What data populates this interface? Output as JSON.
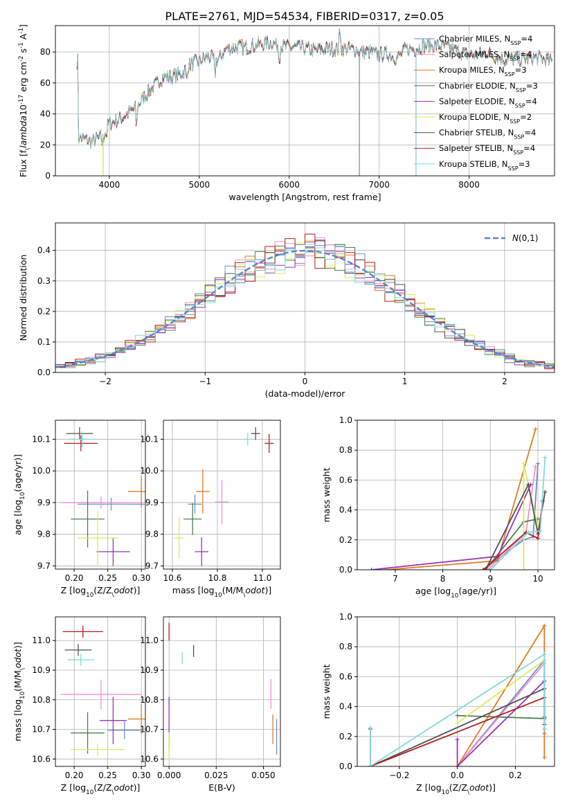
{
  "title": "PLATE=2761, MJD=54534, FIBERID=0317, z=0.05",
  "colors": [
    "#6c8ebf",
    "#f48ed2",
    "#e07b22",
    "#4a7f52",
    "#9b30b7",
    "#d7ec5c",
    "#505050",
    "#b31c1c",
    "#7fd8e0"
  ],
  "chart_data": [
    {
      "id": "spectrum",
      "type": "line",
      "xlabel": "wavelength [Angstrom, rest frame]",
      "ylabel": "Flux [f$_\\lambda$10$^{-17}$ erg cm$^{-2}$ s$^{-1}$ A$^{-1}$]",
      "xlim": [
        3400,
        8950
      ],
      "ylim": [
        0,
        97
      ],
      "xticks": [
        4000,
        5000,
        6000,
        7000,
        8000
      ],
      "yticks": [
        0,
        20,
        40,
        60,
        80
      ],
      "legend": "right",
      "series": [
        {
          "name": "Chabrier MILES, N$_{SSP}$=4"
        },
        {
          "name": "Salpeter MILES, N$_{SSP}$=4"
        },
        {
          "name": "Kroupa MILES, N$_{SSP}$=3"
        },
        {
          "name": "Chabrier ELODIE, N$_{SSP}$=3"
        },
        {
          "name": "Salpeter ELODIE, N$_{SSP}$=4"
        },
        {
          "name": "Kroupa ELODIE, N$_{SSP}$=2"
        },
        {
          "name": "Chabrier STELIB, N$_{SSP}$=4"
        },
        {
          "name": "Salpeter STELIB, N$_{SSP}$=4"
        },
        {
          "name": "Kroupa STELIB, N$_{SSP}$=3"
        }
      ],
      "continuum": [
        [
          3650,
          25
        ],
        [
          3800,
          22
        ],
        [
          3920,
          25
        ],
        [
          4000,
          34
        ],
        [
          4100,
          36
        ],
        [
          4200,
          40
        ],
        [
          4300,
          44
        ],
        [
          4400,
          52
        ],
        [
          4500,
          58
        ],
        [
          4600,
          64
        ],
        [
          4700,
          64
        ],
        [
          4800,
          66
        ],
        [
          4900,
          72
        ],
        [
          5000,
          74
        ],
        [
          5100,
          77
        ],
        [
          5200,
          74
        ],
        [
          5300,
          82
        ],
        [
          5400,
          83
        ],
        [
          5500,
          83
        ],
        [
          5600,
          84
        ],
        [
          5700,
          85
        ],
        [
          5800,
          86
        ],
        [
          5900,
          84
        ],
        [
          6000,
          83
        ],
        [
          6100,
          83
        ],
        [
          6200,
          82
        ],
        [
          6300,
          81
        ],
        [
          6400,
          82
        ],
        [
          6500,
          82
        ],
        [
          6600,
          82
        ],
        [
          6700,
          82
        ],
        [
          6800,
          80
        ],
        [
          6900,
          80
        ],
        [
          7000,
          78
        ],
        [
          7100,
          79
        ],
        [
          7200,
          76
        ],
        [
          7300,
          82
        ],
        [
          7400,
          82
        ],
        [
          7500,
          84
        ],
        [
          7600,
          84
        ],
        [
          7700,
          84
        ],
        [
          7800,
          82
        ],
        [
          7900,
          80
        ],
        [
          8000,
          78
        ],
        [
          8100,
          78
        ],
        [
          8200,
          80
        ],
        [
          8300,
          77
        ],
        [
          8400,
          75
        ],
        [
          8500,
          76
        ],
        [
          8600,
          75
        ],
        [
          8700,
          76
        ],
        [
          8800,
          76
        ],
        [
          8900,
          74
        ]
      ],
      "dips": [
        [
          3930,
          3
        ],
        [
          3970,
          3
        ],
        [
          4300,
          10
        ],
        [
          4860,
          6
        ],
        [
          5175,
          8
        ],
        [
          5890,
          6
        ],
        [
          6563,
          -8
        ]
      ],
      "dropouts": [
        [
          3930,
          0
        ],
        [
          3930,
          5
        ],
        [
          6780,
          3
        ],
        [
          7410,
          2
        ],
        [
          7410,
          7
        ],
        [
          7410,
          8
        ]
      ]
    },
    {
      "id": "residual-hist",
      "type": "histogram",
      "xlabel": "(data-model)/error",
      "ylabel": "Normed distribution",
      "xlim": [
        -2.5,
        2.5
      ],
      "ylim": [
        0,
        0.49
      ],
      "xticks": [
        -2,
        -1,
        0,
        1,
        2
      ],
      "yticks": [
        0.0,
        0.1,
        0.2,
        0.3,
        0.4
      ],
      "bin_width": 0.1,
      "legend": "top-right",
      "reference_curve": {
        "name": "$\\mathcal{N}(0,1)$",
        "color": "#4f86d8"
      }
    },
    {
      "id": "age-vs-z",
      "type": "scatter",
      "xlabel": "Z [log$_{10}$(Z/Z$_\\odot$)]",
      "ylabel": "age  [log$_{10}$(age/yr)]",
      "xlim": [
        0.172,
        0.306
      ],
      "ylim": [
        9.69,
        10.16
      ],
      "xticks": [
        0.2,
        0.25,
        0.3
      ],
      "yticks": [
        9.7,
        9.8,
        9.9,
        10.0,
        10.1
      ],
      "points": [
        {
          "x": 0.255,
          "xerr": 0.05,
          "y": 9.895,
          "yerr": 0.02,
          "c": 0
        },
        {
          "x": 0.24,
          "xerr": 0.06,
          "y": 9.9,
          "yerr": 0.02,
          "c": 1
        },
        {
          "x": 0.3,
          "xerr": 0.02,
          "y": 9.935,
          "yerr": 0.05,
          "c": 2
        },
        {
          "x": 0.22,
          "xerr": 0.025,
          "y": 9.848,
          "yerr": 0.09,
          "c": 3
        },
        {
          "x": 0.258,
          "xerr": 0.025,
          "y": 9.745,
          "yerr": 0.045,
          "c": 4
        },
        {
          "x": 0.235,
          "xerr": 0.03,
          "y": 9.788,
          "yerr": 0.085,
          "c": 5
        },
        {
          "x": 0.208,
          "xerr": 0.02,
          "y": 10.118,
          "yerr": 0.02,
          "c": 6
        },
        {
          "x": 0.21,
          "xerr": 0.025,
          "y": 10.087,
          "yerr": 0.025,
          "c": 7
        },
        {
          "x": 0.212,
          "xerr": 0.02,
          "y": 10.1,
          "yerr": 0.025,
          "c": 8
        }
      ]
    },
    {
      "id": "age-vs-mass",
      "type": "scatter",
      "xlabel": "mass [log$_{10}$(M/M$_\\odot$)]",
      "ylabel": "",
      "xlim": [
        10.56,
        11.08
      ],
      "ylim": [
        9.69,
        10.16
      ],
      "xticks": [
        10.6,
        10.8,
        11.0
      ],
      "yticks": [
        9.7,
        9.8,
        9.9,
        10.0,
        10.1
      ],
      "points": [
        {
          "x": 10.7,
          "xerr": 0.03,
          "y": 9.895,
          "yerr": 0.03,
          "c": 0
        },
        {
          "x": 10.82,
          "xerr": 0.03,
          "y": 9.902,
          "yerr": 0.07,
          "c": 1
        },
        {
          "x": 10.735,
          "xerr": 0.03,
          "y": 9.935,
          "yerr": 0.07,
          "c": 2
        },
        {
          "x": 10.69,
          "xerr": 0.04,
          "y": 9.848,
          "yerr": 0.05,
          "c": 3
        },
        {
          "x": 10.73,
          "xerr": 0.03,
          "y": 9.745,
          "yerr": 0.045,
          "c": 4
        },
        {
          "x": 10.63,
          "xerr": 0.02,
          "y": 9.788,
          "yerr": 0.065,
          "c": 5
        },
        {
          "x": 10.97,
          "xerr": 0.02,
          "y": 10.118,
          "yerr": 0.02,
          "c": 6
        },
        {
          "x": 11.03,
          "xerr": 0.02,
          "y": 10.087,
          "yerr": 0.03,
          "c": 7
        },
        {
          "x": 10.935,
          "xerr": 0.02,
          "y": 10.1,
          "yerr": 0.02,
          "c": 8
        }
      ]
    },
    {
      "id": "mass-weight-vs-age",
      "type": "line",
      "xlabel": "age  [log$_{10}$(age/yr)]",
      "ylabel": "mass weight",
      "xlim": [
        6.2,
        10.35
      ],
      "ylim": [
        0,
        1.0
      ],
      "xticks": [
        7,
        8,
        9,
        10
      ],
      "yticks": [
        0.0,
        0.2,
        0.4,
        0.6,
        0.8,
        1.0
      ],
      "series": [
        {
          "c": 0,
          "points": [
            [
              8.85,
              0.0
            ],
            [
              9.7,
              0.2
            ],
            [
              9.9,
              0.22
            ],
            [
              10.0,
              0.71
            ]
          ]
        },
        {
          "c": 1,
          "points": [
            [
              8.95,
              0.0
            ],
            [
              9.75,
              0.25
            ],
            [
              9.95,
              0.69
            ]
          ]
        },
        {
          "c": 2,
          "points": [
            [
              6.8,
              0.0
            ],
            [
              9.15,
              0.06
            ],
            [
              9.95,
              0.94
            ]
          ]
        },
        {
          "c": 3,
          "points": [
            [
              8.9,
              0.0
            ],
            [
              9.7,
              0.32
            ],
            [
              10.0,
              0.34
            ]
          ]
        },
        {
          "c": 4,
          "points": [
            [
              6.5,
              0.0
            ],
            [
              9.15,
              0.09
            ],
            [
              9.85,
              0.57
            ]
          ]
        },
        {
          "c": 5,
          "points": [
            [
              9.7,
              0.0
            ],
            [
              9.7,
              0.71
            ],
            [
              10.0,
              0.29
            ]
          ]
        },
        {
          "c": 6,
          "points": [
            [
              8.9,
              0.0
            ],
            [
              9.8,
              0.57
            ],
            [
              10.0,
              0.24
            ],
            [
              10.15,
              0.52
            ]
          ]
        },
        {
          "c": 7,
          "points": [
            [
              8.85,
              0.0
            ],
            [
              9.75,
              0.25
            ],
            [
              10.0,
              0.21
            ],
            [
              10.1,
              0.46
            ]
          ]
        },
        {
          "c": 8,
          "points": [
            [
              9.0,
              0.0
            ],
            [
              9.8,
              0.25
            ],
            [
              10.05,
              0.26
            ],
            [
              10.15,
              0.75
            ]
          ]
        }
      ]
    },
    {
      "id": "mass-vs-z",
      "type": "scatter",
      "xlabel": "Z [log$_{10}$(Z/Z$_\\odot$)]",
      "ylabel": "mass [log$_{10}$(M/M$_\\odot$)]",
      "xlim": [
        0.172,
        0.306
      ],
      "ylim": [
        10.575,
        11.08
      ],
      "xticks": [
        0.2,
        0.25,
        0.3
      ],
      "yticks": [
        10.6,
        10.7,
        10.8,
        10.9,
        11.0
      ],
      "points": [
        {
          "x": 0.275,
          "xerr": 0.025,
          "y": 10.697,
          "yerr": 0.03,
          "c": 0
        },
        {
          "x": 0.24,
          "xerr": 0.06,
          "y": 10.818,
          "yerr": 0.05,
          "c": 1
        },
        {
          "x": 0.3,
          "xerr": 0.02,
          "y": 10.735,
          "yerr": 0.05,
          "c": 2
        },
        {
          "x": 0.22,
          "xerr": 0.025,
          "y": 10.688,
          "yerr": 0.07,
          "c": 3
        },
        {
          "x": 0.258,
          "xerr": 0.02,
          "y": 10.73,
          "yerr": 0.08,
          "c": 4
        },
        {
          "x": 0.235,
          "xerr": 0.04,
          "y": 10.632,
          "yerr": 0.02,
          "c": 5
        },
        {
          "x": 0.206,
          "xerr": 0.02,
          "y": 10.968,
          "yerr": 0.02,
          "c": 6
        },
        {
          "x": 0.213,
          "xerr": 0.03,
          "y": 11.03,
          "yerr": 0.02,
          "c": 7
        },
        {
          "x": 0.21,
          "xerr": 0.02,
          "y": 10.935,
          "yerr": 0.02,
          "c": 8
        }
      ]
    },
    {
      "id": "mass-vs-ebv",
      "type": "scatter",
      "xlabel": "E(B-V)",
      "ylabel": "",
      "xlim": [
        -0.003,
        0.059
      ],
      "ylim": [
        10.575,
        11.08
      ],
      "xticks": [
        0.0,
        0.025,
        0.05
      ],
      "yticks": [
        10.6,
        10.7,
        10.8,
        10.9,
        11.0
      ],
      "points": [
        {
          "x": 0.057,
          "y": 10.675,
          "yerr": 0.06,
          "c": 0
        },
        {
          "x": 0.054,
          "y": 10.82,
          "yerr": 0.05,
          "c": 1
        },
        {
          "x": 0.055,
          "y": 10.7,
          "yerr": 0.05,
          "c": 2
        },
        {
          "x": 0.0,
          "y": 10.66,
          "yerr": 0.03,
          "c": 3
        },
        {
          "x": 0.0,
          "y": 10.75,
          "yerr": 0.06,
          "c": 4
        },
        {
          "x": 0.0,
          "y": 10.64,
          "yerr": 0.05,
          "c": 5
        },
        {
          "x": 0.013,
          "y": 10.965,
          "yerr": 0.02,
          "c": 6
        },
        {
          "x": 0.0,
          "y": 11.03,
          "yerr": 0.03,
          "c": 7
        },
        {
          "x": 0.007,
          "y": 10.94,
          "yerr": 0.02,
          "c": 8
        }
      ]
    },
    {
      "id": "mass-weight-vs-z",
      "type": "line",
      "xlabel": "Z [log$_{10}$(Z/Z$_\\odot$)]",
      "ylabel": "mass weight",
      "xlim": [
        -0.345,
        0.335
      ],
      "ylim": [
        0,
        1.0
      ],
      "xticks": [
        -0.2,
        0.0,
        0.2
      ],
      "yticks": [
        0.0,
        0.2,
        0.4,
        0.6,
        0.8,
        1.0
      ],
      "series": [
        {
          "c": 0,
          "points": [
            [
              0.0,
              0.0
            ],
            [
              0.3,
              0.71
            ],
            [
              0.3,
              0.22
            ]
          ]
        },
        {
          "c": 1,
          "points": [
            [
              0.0,
              0.0
            ],
            [
              0.3,
              0.69
            ],
            [
              0.3,
              0.25
            ]
          ]
        },
        {
          "c": 2,
          "points": [
            [
              0.0,
              0.0
            ],
            [
              0.3,
              0.94
            ],
            [
              0.3,
              0.06
            ]
          ]
        },
        {
          "c": 3,
          "points": [
            [
              0.0,
              0.34
            ],
            [
              0.3,
              0.32
            ]
          ]
        },
        {
          "c": 4,
          "points": [
            [
              0.0,
              0.18
            ],
            [
              0.0,
              0.0
            ],
            [
              0.3,
              0.57
            ]
          ]
        },
        {
          "c": 5,
          "points": [
            [
              0.0,
              0.29
            ],
            [
              0.3,
              0.71
            ]
          ]
        },
        {
          "c": 6,
          "points": [
            [
              -0.3,
              0.0
            ],
            [
              0.3,
              0.52
            ],
            [
              0.3,
              0.33
            ]
          ]
        },
        {
          "c": 7,
          "points": [
            [
              -0.3,
              0.25
            ],
            [
              -0.3,
              0.0
            ],
            [
              0.3,
              0.46
            ],
            [
              0.3,
              0.28
            ]
          ]
        },
        {
          "c": 8,
          "points": [
            [
              -0.3,
              0.26
            ],
            [
              -0.3,
              0.0
            ],
            [
              0.3,
              0.75
            ],
            [
              0.3,
              0.25
            ]
          ]
        }
      ]
    }
  ]
}
